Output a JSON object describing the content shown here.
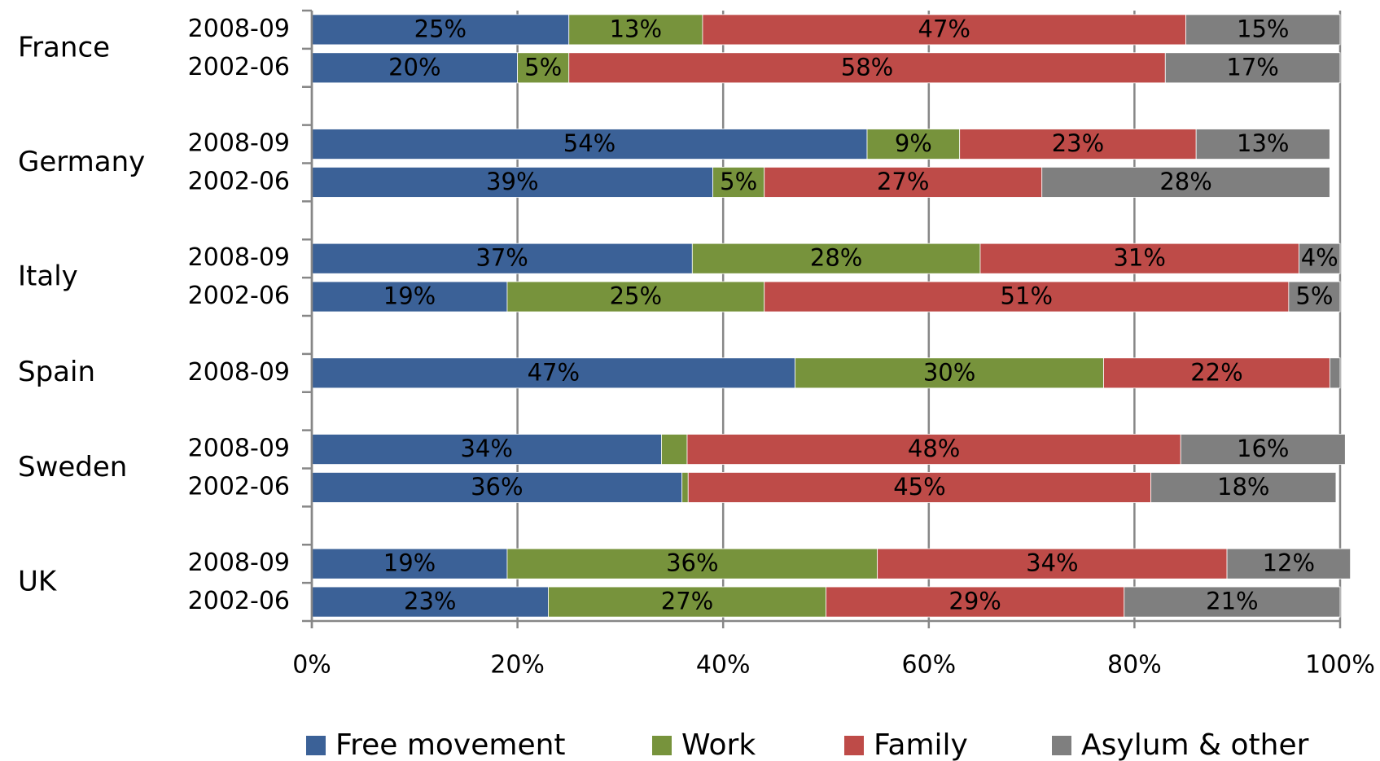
{
  "chart_data": {
    "type": "stacked_bar_horizontal",
    "groups": [
      {
        "name": "France",
        "rows": [
          "2008-09",
          "2002-06"
        ]
      },
      {
        "name": "Germany",
        "rows": [
          "2008-09",
          "2002-06"
        ]
      },
      {
        "name": "Italy",
        "rows": [
          "2008-09",
          "2002-06"
        ]
      },
      {
        "name": "Spain",
        "rows": [
          "2008-09"
        ]
      },
      {
        "name": "Sweden",
        "rows": [
          "2008-09",
          "2002-06"
        ]
      },
      {
        "name": "UK",
        "rows": [
          "2008-09",
          "2002-06"
        ]
      }
    ],
    "series": [
      {
        "name": "Free movement",
        "color": "#3b6197",
        "values": [
          25,
          20,
          54,
          39,
          37,
          19,
          47,
          34,
          36,
          19,
          23
        ],
        "value_labels": [
          "25%",
          "20%",
          "54%",
          "39%",
          "37%",
          "19%",
          "47%",
          "34%",
          "36%",
          "19%",
          "23%"
        ]
      },
      {
        "name": "Work",
        "color": "#77933c",
        "values": [
          13,
          5,
          9,
          5,
          28,
          25,
          30,
          2.5,
          0.6,
          36,
          27
        ],
        "value_labels": [
          "13%",
          "5%",
          "9%",
          "5%",
          "28%",
          "25%",
          "30%",
          null,
          null,
          "36%",
          "27%"
        ]
      },
      {
        "name": "Family",
        "color": "#be4b48",
        "values": [
          47,
          58,
          23,
          27,
          31,
          51,
          22,
          48,
          45,
          34,
          29
        ],
        "value_labels": [
          "47%",
          "58%",
          "23%",
          "27%",
          "31%",
          "51%",
          "22%",
          "48%",
          "45%",
          "34%",
          "29%"
        ]
      },
      {
        "name": "Asylum & other",
        "color": "#7f7f7f",
        "values": [
          15,
          17,
          13,
          28,
          4,
          5,
          1,
          16,
          18,
          12,
          21
        ],
        "value_labels": [
          "15%",
          "17%",
          "13%",
          "28%",
          "4%",
          "5%",
          null,
          "16%",
          "18%",
          "12%",
          "21%"
        ]
      }
    ],
    "xlim": [
      0,
      100
    ],
    "xticks": [
      {
        "value": 0,
        "label": "0%"
      },
      {
        "value": 20,
        "label": "20%"
      },
      {
        "value": 40,
        "label": "40%"
      },
      {
        "value": 60,
        "label": "60%"
      },
      {
        "value": 80,
        "label": "80%"
      },
      {
        "value": 100,
        "label": "100%"
      }
    ],
    "grid": true,
    "legend": "bottom"
  }
}
